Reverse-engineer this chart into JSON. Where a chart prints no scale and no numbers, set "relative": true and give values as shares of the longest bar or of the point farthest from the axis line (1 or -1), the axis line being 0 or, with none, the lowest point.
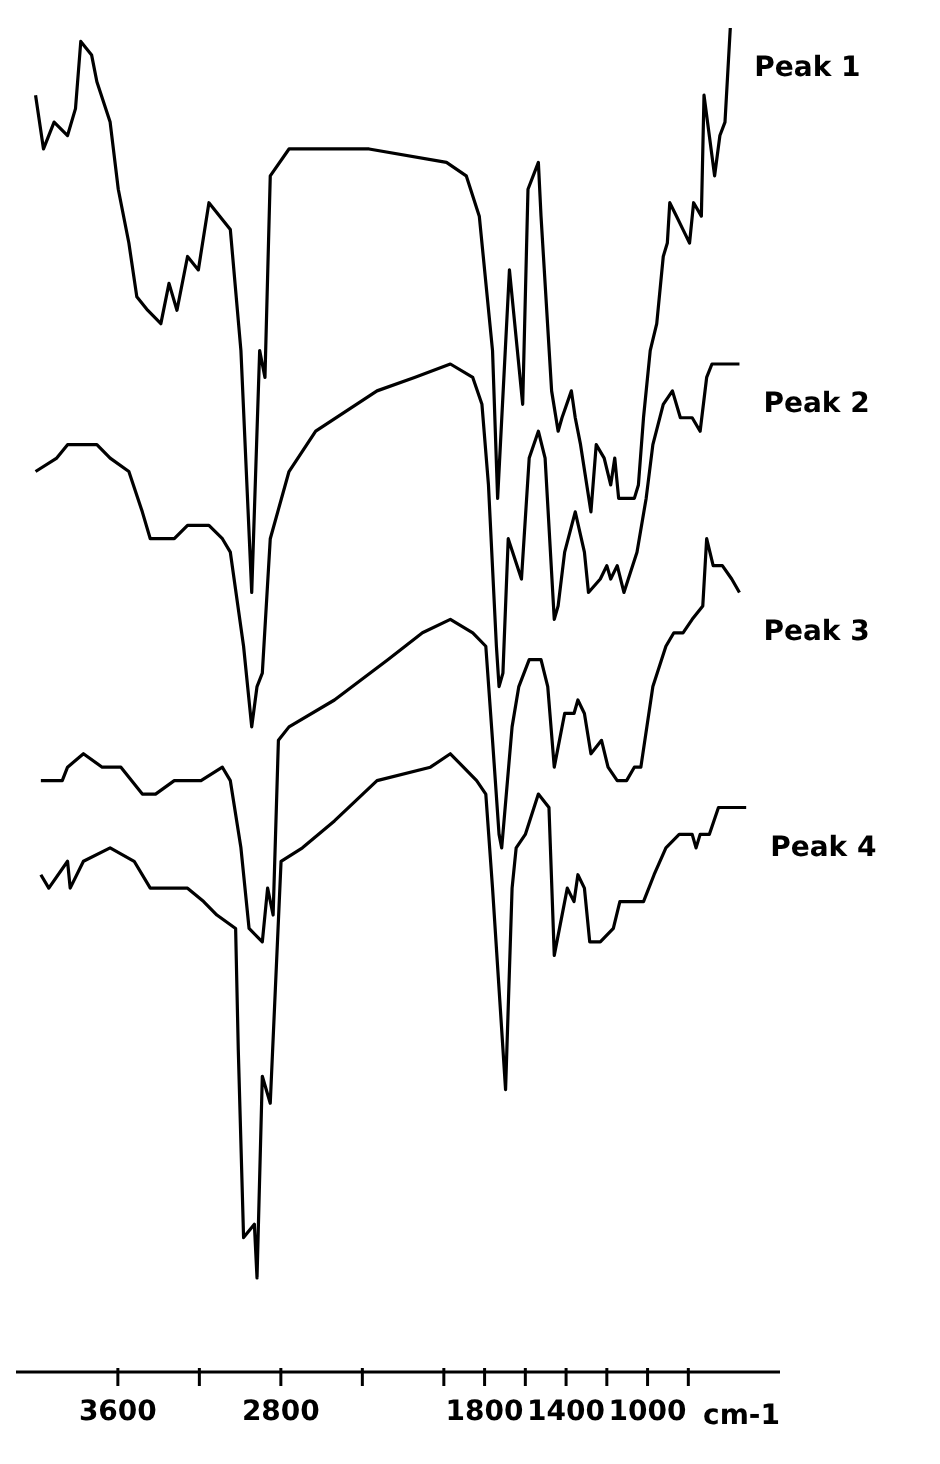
{
  "chart_data": {
    "type": "line",
    "relative": true,
    "xlabel": "cm-1",
    "xlim": [
      4100,
      350
    ],
    "xticks": [
      3600,
      {
        "value": 3200,
        "label": null
      },
      2800,
      {
        "value": 2400,
        "label": null
      },
      {
        "value": 2000,
        "label": null
      },
      1800,
      {
        "value": 1600,
        "label": null
      },
      1400,
      {
        "value": 1200,
        "label": null
      },
      1000,
      {
        "value": 800,
        "label": null
      }
    ],
    "grid": false,
    "legend": false,
    "marker": "none",
    "line_style": "solid",
    "series": [
      {
        "name": "Peak 1",
        "color": "#000000",
        "x": [
          4004,
          3965,
          3913,
          3847,
          3808,
          3782,
          3729,
          3703,
          3638,
          3598,
          3546,
          3507,
          3454,
          3389,
          3349,
          3310,
          3258,
          3205,
          3153,
          3100,
          3048,
          2996,
          2943,
          2904,
          2878,
          2852,
          2760,
          2367,
          1987,
          1890,
          1826,
          1761,
          1736,
          1678,
          1613,
          1587,
          1536,
          1523,
          1471,
          1439,
          1420,
          1374,
          1355,
          1329,
          1278,
          1252,
          1213,
          1181,
          1161,
          1142,
          1103,
          1065,
          1045,
          1020,
          987,
          955,
          923,
          903,
          891,
          858,
          826,
          794,
          774,
          736,
          723,
          697,
          671,
          645,
          620,
          594
        ],
        "values": [
          0.95,
          0.91,
          0.93,
          0.92,
          0.94,
          0.99,
          0.98,
          0.96,
          0.93,
          0.88,
          0.84,
          0.8,
          0.79,
          0.78,
          0.81,
          0.79,
          0.83,
          0.82,
          0.87,
          0.86,
          0.85,
          0.76,
          0.58,
          0.76,
          0.74,
          0.89,
          0.91,
          0.91,
          0.9,
          0.89,
          0.86,
          0.76,
          0.65,
          0.82,
          0.72,
          0.88,
          0.9,
          0.86,
          0.73,
          0.7,
          0.71,
          0.73,
          0.71,
          0.69,
          0.64,
          0.69,
          0.68,
          0.66,
          0.68,
          0.65,
          0.65,
          0.65,
          0.66,
          0.71,
          0.76,
          0.78,
          0.83,
          0.84,
          0.87,
          0.86,
          0.85,
          0.84,
          0.87,
          0.86,
          0.95,
          0.92,
          0.89,
          0.92,
          0.93,
          1.0
        ]
      },
      {
        "name": "Peak 2",
        "color": "#000000",
        "x": [
          4004,
          3900,
          3847,
          3769,
          3703,
          3638,
          3546,
          3480,
          3441,
          3323,
          3258,
          3153,
          3087,
          3048,
          2983,
          2943,
          2917,
          2891,
          2852,
          2760,
          2629,
          2328,
          2144,
          1968,
          1858,
          1813,
          1781,
          1742,
          1729,
          1710,
          1684,
          1619,
          1581,
          1536,
          1503,
          1458,
          1439,
          1407,
          1355,
          1310,
          1290,
          1232,
          1200,
          1181,
          1149,
          1116,
          1052,
          1007,
          974,
          923,
          878,
          839,
          781,
          742,
          710,
          684,
          620,
          549
        ],
        "values": [
          0.67,
          0.68,
          0.69,
          0.69,
          0.69,
          0.68,
          0.67,
          0.64,
          0.62,
          0.62,
          0.63,
          0.63,
          0.62,
          0.61,
          0.54,
          0.48,
          0.51,
          0.52,
          0.62,
          0.67,
          0.7,
          0.73,
          0.74,
          0.75,
          0.74,
          0.72,
          0.66,
          0.54,
          0.51,
          0.52,
          0.62,
          0.59,
          0.68,
          0.7,
          0.68,
          0.56,
          0.57,
          0.61,
          0.64,
          0.61,
          0.58,
          0.59,
          0.6,
          0.59,
          0.6,
          0.58,
          0.61,
          0.65,
          0.69,
          0.72,
          0.73,
          0.71,
          0.71,
          0.7,
          0.74,
          0.75,
          0.75,
          0.75
        ]
      },
      {
        "name": "Peak 3",
        "color": "#000000",
        "x": [
          3978,
          3873,
          3847,
          3769,
          3677,
          3585,
          3480,
          3415,
          3323,
          3192,
          3087,
          3048,
          2996,
          2956,
          2891,
          2865,
          2838,
          2812,
          2760,
          2537,
          2275,
          2105,
          1968,
          1858,
          1794,
          1761,
          1729,
          1716,
          1665,
          1632,
          1581,
          1523,
          1490,
          1458,
          1407,
          1361,
          1342,
          1310,
          1278,
          1226,
          1194,
          1149,
          1103,
          1065,
          1033,
          974,
          910,
          871,
          826,
          781,
          729,
          710,
          678,
          633,
          587,
          549
        ],
        "values": [
          0.44,
          0.44,
          0.45,
          0.46,
          0.45,
          0.45,
          0.43,
          0.43,
          0.44,
          0.44,
          0.45,
          0.44,
          0.39,
          0.33,
          0.32,
          0.36,
          0.34,
          0.47,
          0.48,
          0.5,
          0.53,
          0.55,
          0.56,
          0.55,
          0.54,
          0.47,
          0.4,
          0.39,
          0.48,
          0.51,
          0.53,
          0.53,
          0.51,
          0.45,
          0.49,
          0.49,
          0.5,
          0.49,
          0.46,
          0.47,
          0.45,
          0.44,
          0.44,
          0.45,
          0.45,
          0.51,
          0.54,
          0.55,
          0.55,
          0.56,
          0.57,
          0.62,
          0.6,
          0.6,
          0.59,
          0.58
        ]
      },
      {
        "name": "Peak 4",
        "color": "#000000",
        "x": [
          3978,
          3939,
          3847,
          3834,
          3769,
          3638,
          3520,
          3441,
          3323,
          3258,
          3179,
          3114,
          3022,
          3009,
          2983,
          2930,
          2917,
          2891,
          2852,
          2799,
          2694,
          2537,
          2328,
          2066,
          1968,
          1839,
          1794,
          1761,
          1697,
          1665,
          1645,
          1600,
          1536,
          1484,
          1458,
          1394,
          1361,
          1342,
          1310,
          1284,
          1232,
          1168,
          1136,
          1103,
          1020,
          968,
          910,
          845,
          781,
          762,
          742,
          697,
          652,
          613,
          568,
          516
        ],
        "values": [
          0.37,
          0.36,
          0.38,
          0.36,
          0.38,
          0.39,
          0.38,
          0.36,
          0.36,
          0.36,
          0.35,
          0.34,
          0.33,
          0.24,
          0.1,
          0.11,
          0.07,
          0.22,
          0.2,
          0.38,
          0.39,
          0.41,
          0.44,
          0.45,
          0.46,
          0.44,
          0.43,
          0.36,
          0.21,
          0.36,
          0.39,
          0.4,
          0.43,
          0.42,
          0.31,
          0.36,
          0.35,
          0.37,
          0.36,
          0.32,
          0.32,
          0.33,
          0.35,
          0.35,
          0.35,
          0.37,
          0.39,
          0.4,
          0.4,
          0.39,
          0.4,
          0.4,
          0.42,
          0.42,
          0.42,
          0.42
        ]
      }
    ]
  }
}
